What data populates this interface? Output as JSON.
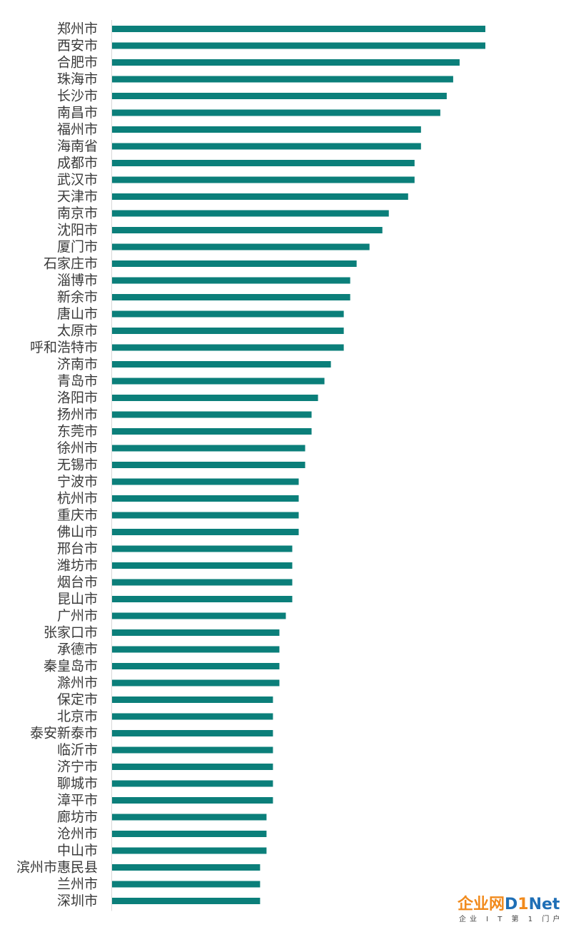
{
  "chart_data": {
    "type": "bar",
    "orientation": "horizontal",
    "categories": [
      "郑州市",
      "西安市",
      "合肥市",
      "珠海市",
      "长沙市",
      "南昌市",
      "福州市",
      "海南省",
      "成都市",
      "武汉市",
      "天津市",
      "南京市",
      "沈阳市",
      "厦门市",
      "石家庄市",
      "淄博市",
      "新余市",
      "唐山市",
      "太原市",
      "呼和浩特市",
      "济南市",
      "青岛市",
      "洛阳市",
      "扬州市",
      "东莞市",
      "徐州市",
      "无锡市",
      "宁波市",
      "杭州市",
      "重庆市",
      "佛山市",
      "邢台市",
      "潍坊市",
      "烟台市",
      "昆山市",
      "广州市",
      "张家口市",
      "承德市",
      "秦皇岛市",
      "滁州市",
      "保定市",
      "北京市",
      "泰安新泰市",
      "临沂市",
      "济宁市",
      "聊城市",
      "漳平市",
      "廊坊市",
      "沧州市",
      "中山市",
      "滨州市惠民县",
      "兰州市",
      "深圳市"
    ],
    "values": [
      58,
      58,
      54,
      53,
      52,
      51,
      48,
      48,
      47,
      47,
      46,
      43,
      42,
      40,
      38,
      37,
      37,
      36,
      36,
      36,
      34,
      33,
      32,
      31,
      31,
      30,
      30,
      29,
      29,
      29,
      29,
      28,
      28,
      28,
      28,
      27,
      26,
      26,
      26,
      26,
      25,
      25,
      25,
      25,
      25,
      25,
      25,
      24,
      24,
      24,
      23,
      23,
      23
    ],
    "xlim": [
      0,
      58
    ],
    "bar_color": "#0b7f7a",
    "grid": false,
    "axis_ticks_shown": false,
    "legend": "none"
  },
  "watermark": {
    "brand_cn": "企业网",
    "brand_d": "D",
    "brand_one": "1",
    "brand_net": "Net",
    "tagline": "企业 I T 第 1 门户"
  }
}
